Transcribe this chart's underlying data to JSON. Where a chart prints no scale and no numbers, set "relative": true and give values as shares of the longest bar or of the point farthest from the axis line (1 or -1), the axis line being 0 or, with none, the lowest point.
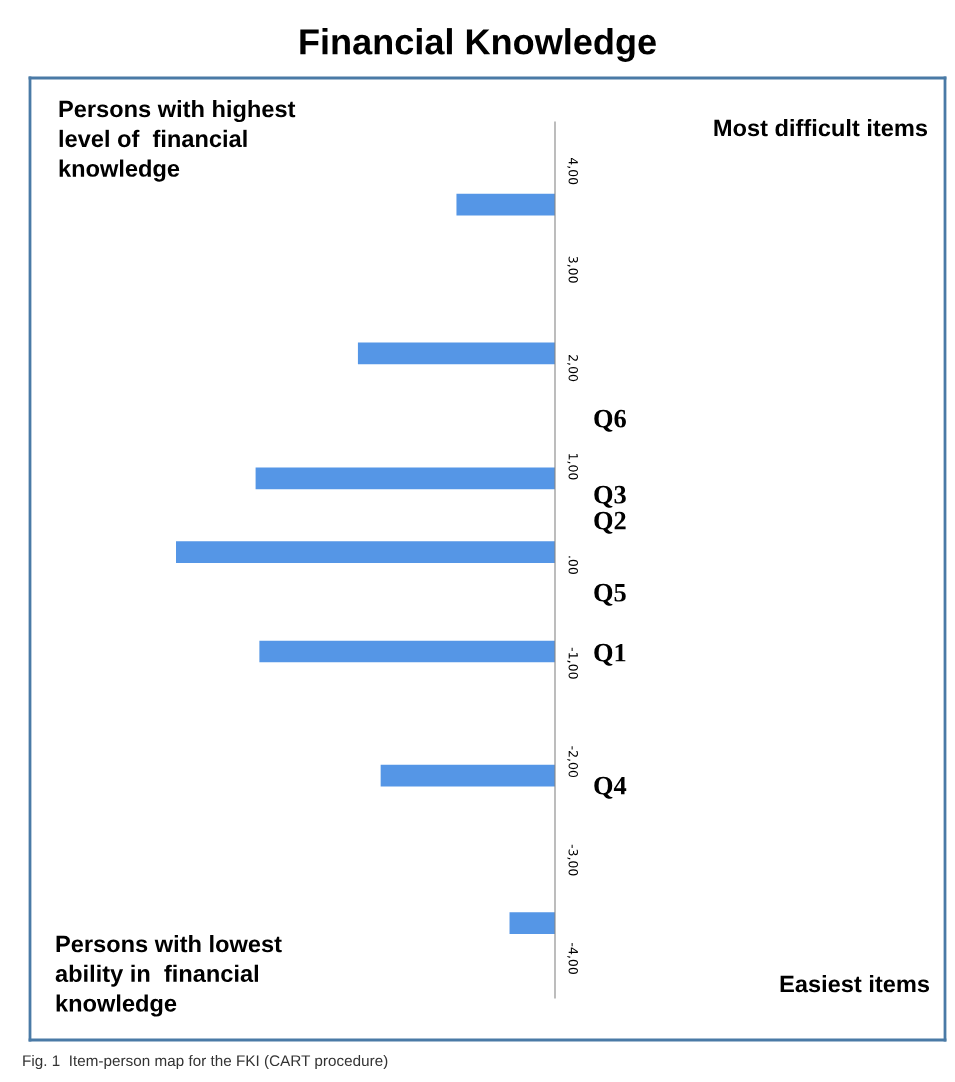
{
  "chart_data": {
    "type": "bar",
    "orientation": "horizontal",
    "relative": true,
    "title": "Financial Knowledge",
    "x": [
      3.66,
      2.15,
      0.88,
      0.13,
      -0.88,
      -2.14,
      -3.64
    ],
    "values": [
      -0.26,
      -0.52,
      -0.79,
      -1,
      -0.78,
      -0.46,
      -0.12
    ],
    "color": "#5596e6",
    "ylim": [
      -4.4,
      4.5
    ],
    "yticks": [
      {
        "value": 4,
        "label": "4,00"
      },
      {
        "value": 3,
        "label": "3,00"
      },
      {
        "value": 2,
        "label": "2,00"
      },
      {
        "value": 1,
        "label": "1,00"
      },
      {
        "value": 0,
        "label": ".00"
      },
      {
        "value": -1,
        "label": "-1,00"
      },
      {
        "value": -2,
        "label": "-2,00"
      },
      {
        "value": -3,
        "label": "-3,00"
      },
      {
        "value": -4,
        "label": "-4,00"
      }
    ],
    "grid": false,
    "legend": false,
    "annotations": [
      "Q6",
      "Q3",
      "Q2",
      "Q5",
      "Q1",
      "Q4",
      "Persons with highest level of  financial knowledge",
      "Most difficult items",
      "Persons with lowest ability in  financial knowledge",
      "Easiest items",
      "Fig. 1  Item-person map for the FKI (CART procedure)"
    ]
  }
}
